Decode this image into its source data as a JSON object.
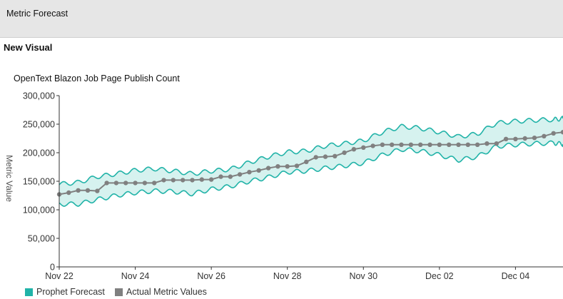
{
  "app": {
    "title": "Metric Forecast"
  },
  "section": {
    "title": "New Visual"
  },
  "colors": {
    "forecast": "#21b3a8",
    "forecast_fill": "#d6f2ef",
    "actual": "#808080",
    "axis": "#333333"
  },
  "legend": {
    "forecast_label": "Prophet Forecast",
    "actual_label": "Actual Metric Values"
  },
  "chart_data": {
    "type": "line",
    "title": "OpenText Blazon Job Page Publish Count",
    "xlabel": "",
    "ylabel": "Metric Value",
    "ylim": [
      0,
      300000
    ],
    "yticks": [
      0,
      50000,
      100000,
      150000,
      200000,
      250000,
      300000
    ],
    "ytick_labels": [
      "0",
      "50,000",
      "100,000",
      "150,000",
      "200,000",
      "250,000",
      "300,000"
    ],
    "xlim": [
      "2023-11-22",
      "2023-12-05T06:00"
    ],
    "xticks": [
      "2023-11-22",
      "2023-11-24",
      "2023-11-26",
      "2023-11-28",
      "2023-11-30",
      "2023-12-02",
      "2023-12-04"
    ],
    "xtick_labels": [
      "Nov 22",
      "Nov 24",
      "Nov 26",
      "Nov 28",
      "Nov 30",
      "Dec 02",
      "Dec 04"
    ],
    "grid": false,
    "legend_position": "bottom-left",
    "series": [
      {
        "name": "Prophet Forecast",
        "kind": "band",
        "x": [
          "2023-11-22",
          "2023-11-22T12:00",
          "2023-11-23",
          "2023-11-23T12:00",
          "2023-11-24",
          "2023-11-24T12:00",
          "2023-11-25",
          "2023-11-25T12:00",
          "2023-11-26",
          "2023-11-26T12:00",
          "2023-11-27",
          "2023-11-27T12:00",
          "2023-11-28",
          "2023-11-28T12:00",
          "2023-11-29",
          "2023-11-29T12:00",
          "2023-11-30",
          "2023-11-30T12:00",
          "2023-12-01",
          "2023-12-01T12:00",
          "2023-12-02",
          "2023-12-02T12:00",
          "2023-12-03",
          "2023-12-03T12:00",
          "2023-12-04",
          "2023-12-04T12:00",
          "2023-12-05",
          "2023-12-05T06:00"
        ],
        "upper": [
          145000,
          148000,
          158000,
          163000,
          169000,
          172000,
          168000,
          163000,
          168000,
          171000,
          183000,
          193000,
          201000,
          203000,
          212000,
          216000,
          221000,
          236000,
          246000,
          243000,
          236000,
          228000,
          233000,
          252000,
          255000,
          257000,
          258000,
          260000
        ],
        "lower": [
          110000,
          110000,
          118000,
          125000,
          130000,
          133000,
          132000,
          128000,
          136000,
          141000,
          150000,
          157000,
          166000,
          168000,
          173000,
          177000,
          182000,
          196000,
          206000,
          203000,
          196000,
          187000,
          193000,
          211000,
          214000,
          216000,
          217000,
          215000
        ]
      },
      {
        "name": "Actual Metric Values",
        "kind": "line-markers",
        "x": [
          "2023-11-22",
          "2023-11-22T06:00",
          "2023-11-22T12:00",
          "2023-11-22T18:00",
          "2023-11-23",
          "2023-11-23T06:00",
          "2023-11-23T12:00",
          "2023-11-23T18:00",
          "2023-11-24",
          "2023-11-24T06:00",
          "2023-11-24T12:00",
          "2023-11-24T18:00",
          "2023-11-25",
          "2023-11-25T06:00",
          "2023-11-25T12:00",
          "2023-11-25T18:00",
          "2023-11-26",
          "2023-11-26T06:00",
          "2023-11-26T12:00",
          "2023-11-26T18:00",
          "2023-11-27",
          "2023-11-27T06:00",
          "2023-11-27T12:00",
          "2023-11-27T18:00",
          "2023-11-28",
          "2023-11-28T06:00",
          "2023-11-28T12:00",
          "2023-11-28T18:00",
          "2023-11-29",
          "2023-11-29T06:00",
          "2023-11-29T12:00",
          "2023-11-29T18:00",
          "2023-11-30",
          "2023-11-30T06:00",
          "2023-11-30T12:00",
          "2023-11-30T18:00",
          "2023-12-01",
          "2023-12-01T06:00",
          "2023-12-01T12:00",
          "2023-12-01T18:00",
          "2023-12-02",
          "2023-12-02T06:00",
          "2023-12-02T12:00",
          "2023-12-02T18:00",
          "2023-12-03",
          "2023-12-03T06:00",
          "2023-12-03T12:00",
          "2023-12-03T18:00",
          "2023-12-04",
          "2023-12-04T06:00",
          "2023-12-04T12:00",
          "2023-12-04T18:00",
          "2023-12-05",
          "2023-12-05T06:00"
        ],
        "y": [
          127000,
          130000,
          134000,
          134000,
          133000,
          147000,
          147000,
          147000,
          147000,
          147000,
          147000,
          152000,
          152000,
          152000,
          152000,
          153000,
          153000,
          158000,
          158000,
          162000,
          166000,
          169000,
          173000,
          176000,
          176000,
          177000,
          184000,
          192000,
          193000,
          194000,
          200000,
          206000,
          209000,
          212000,
          214000,
          214000,
          214000,
          214000,
          214000,
          214000,
          214000,
          214000,
          214000,
          214000,
          214000,
          216000,
          216000,
          224000,
          224000,
          225000,
          226000,
          229000,
          234000,
          236000
        ]
      }
    ]
  }
}
